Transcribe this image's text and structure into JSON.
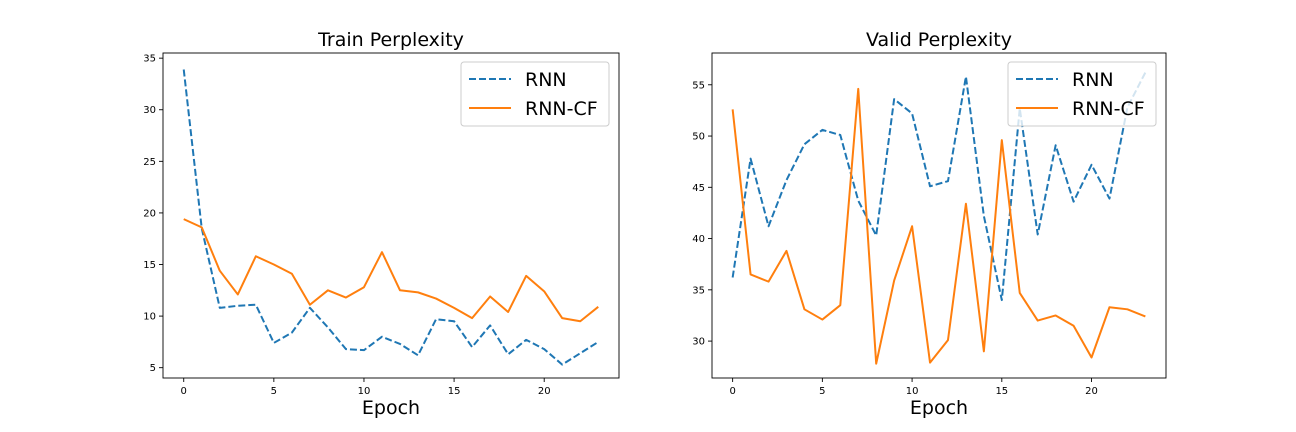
{
  "chart_data": [
    {
      "type": "line",
      "title": "Train Perplexity",
      "xlabel": "Epoch",
      "ylabel": "",
      "xlim": [
        -1.15,
        24.15
      ],
      "ylim": [
        4.0,
        35.5
      ],
      "xticks": [
        0,
        5,
        10,
        15,
        20
      ],
      "yticks": [
        5,
        10,
        15,
        20,
        25,
        30,
        35
      ],
      "legend": "top-right",
      "grid": false,
      "x": [
        0,
        1,
        2,
        3,
        4,
        5,
        6,
        7,
        8,
        9,
        10,
        11,
        12,
        13,
        14,
        15,
        16,
        17,
        18,
        19,
        20,
        21,
        22,
        23
      ],
      "series": [
        {
          "name": "RNN",
          "style": "dashed",
          "color": "#1f77b4",
          "values": [
            33.9,
            18.5,
            10.8,
            11.0,
            11.1,
            7.4,
            8.4,
            10.8,
            8.9,
            6.8,
            6.7,
            8.0,
            7.3,
            6.2,
            9.7,
            9.5,
            7.0,
            9.1,
            6.3,
            7.7,
            6.8,
            5.3,
            6.4,
            7.5
          ]
        },
        {
          "name": "RNN-CF",
          "style": "solid",
          "color": "#ff7f0e",
          "values": [
            19.4,
            18.6,
            14.4,
            12.1,
            15.8,
            15.0,
            14.1,
            11.1,
            12.5,
            11.8,
            12.8,
            16.2,
            12.5,
            12.3,
            11.7,
            10.8,
            9.8,
            11.9,
            10.4,
            13.9,
            12.4,
            9.8,
            9.5,
            10.9
          ]
        }
      ]
    },
    {
      "type": "line",
      "title": "Valid Perplexity",
      "xlabel": "Epoch",
      "ylabel": "",
      "xlim": [
        -1.15,
        24.15
      ],
      "ylim": [
        26.4,
        58.1
      ],
      "xticks": [
        0,
        5,
        10,
        15,
        20
      ],
      "yticks": [
        30,
        35,
        40,
        45,
        50,
        55
      ],
      "legend": "top-right",
      "grid": false,
      "x": [
        0,
        1,
        2,
        3,
        4,
        5,
        6,
        7,
        8,
        9,
        10,
        11,
        12,
        13,
        14,
        15,
        16,
        17,
        18,
        19,
        20,
        21,
        22,
        23
      ],
      "series": [
        {
          "name": "RNN",
          "style": "dashed",
          "color": "#1f77b4",
          "values": [
            36.2,
            47.8,
            41.2,
            45.7,
            49.2,
            50.6,
            50.1,
            43.7,
            40.3,
            53.6,
            52.2,
            45.1,
            45.6,
            55.8,
            42.2,
            34.0,
            52.7,
            40.4,
            49.1,
            43.6,
            47.2,
            43.9,
            52.8,
            56.2
          ]
        },
        {
          "name": "RNN-CF",
          "style": "solid",
          "color": "#ff7f0e",
          "values": [
            52.6,
            36.5,
            35.8,
            38.8,
            33.1,
            32.1,
            33.5,
            54.6,
            27.8,
            35.9,
            41.2,
            27.9,
            30.1,
            43.4,
            29.0,
            49.6,
            34.7,
            32.0,
            32.5,
            31.5,
            28.4,
            33.3,
            33.1,
            32.4
          ]
        }
      ]
    }
  ]
}
